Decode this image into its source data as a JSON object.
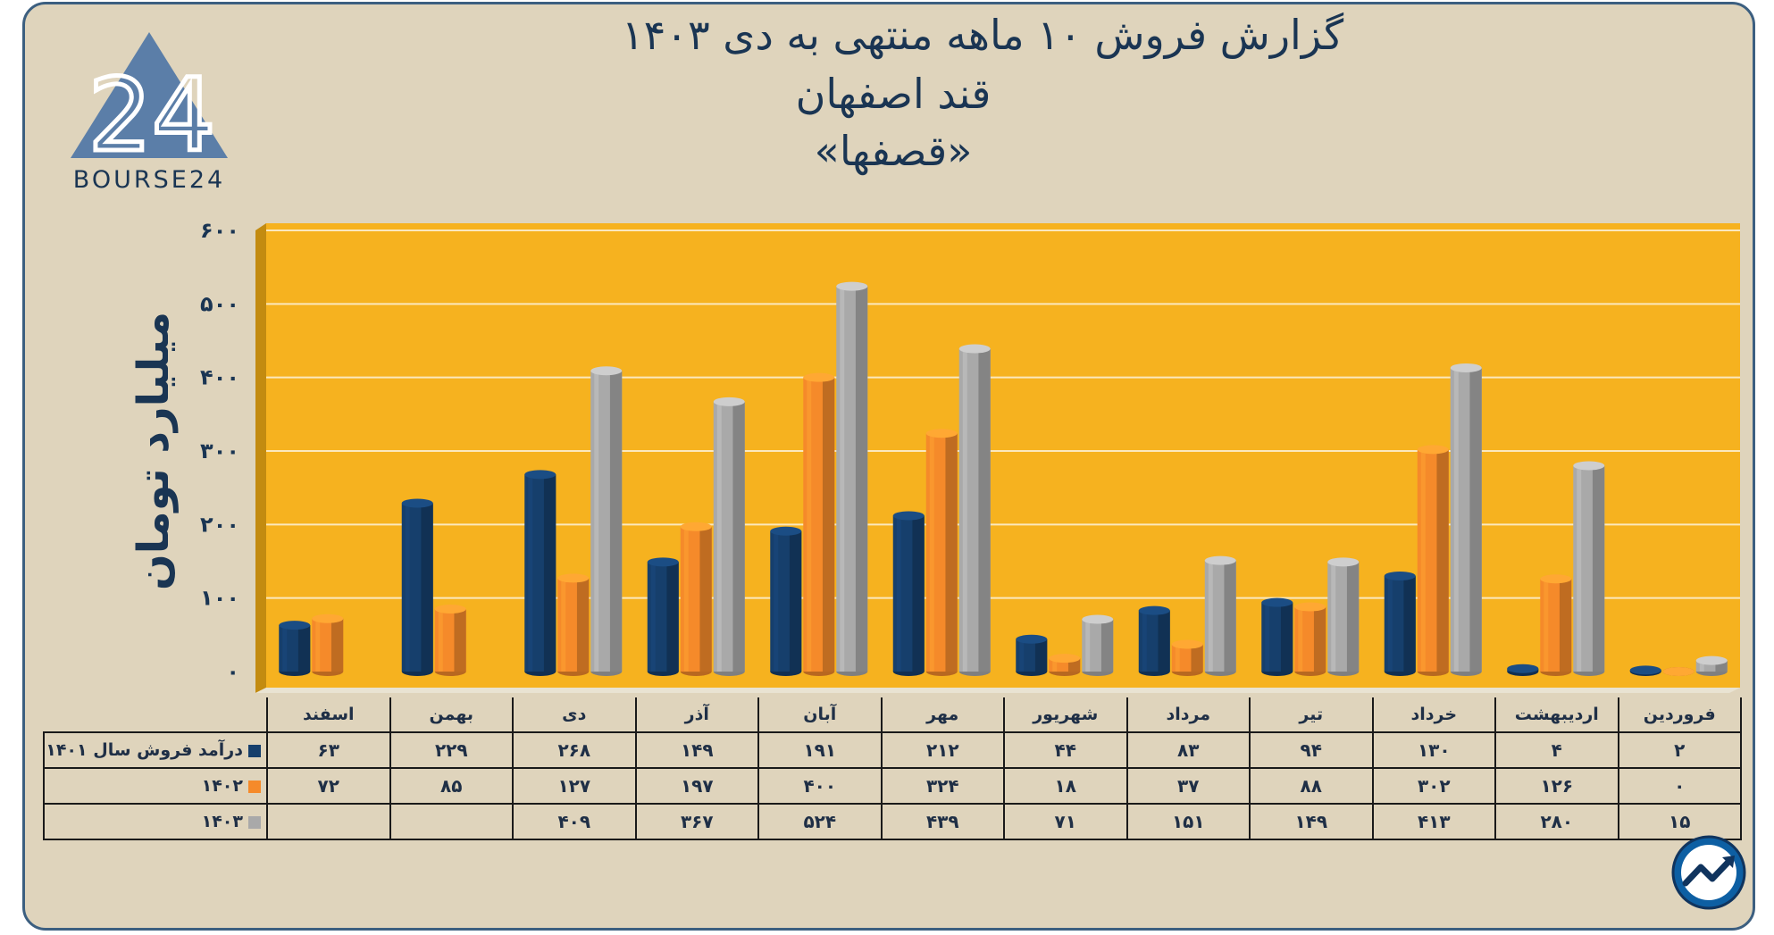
{
  "header": {
    "title_line1": "گزارش  فروش ۱۰ ماهه منتهی به دی ۱۴۰۳",
    "title_line2": "قند اصفهان",
    "title_line3": "«قصفها»"
  },
  "logo": {
    "brand": "BOURSE24",
    "mark": "24",
    "icon": "triangle-logo"
  },
  "badge": {
    "icon": "trend-arrow-icon"
  },
  "colors": {
    "panel_bg": "#dfd4bc",
    "plot_bg": "#f6b21f",
    "title": "#1a3553",
    "series": [
      "#163f6c",
      "#f58a2a",
      "#a9a9a9"
    ]
  },
  "chart_data": {
    "type": "bar",
    "title": "گزارش  فروش ۱۰ ماهه منتهی به دی ۱۴۰۳",
    "subtitle": "قند اصفهان «قصفها»",
    "ylabel": "میلیارد تومان",
    "xlabel": "",
    "ylim": [
      0,
      600
    ],
    "yticks": [
      0,
      100,
      200,
      300,
      400,
      500,
      600
    ],
    "ytick_labels": [
      "۰",
      "۱۰۰",
      "۲۰۰",
      "۳۰۰",
      "۴۰۰",
      "۵۰۰",
      "۶۰۰"
    ],
    "grid": true,
    "legend": "table-below",
    "categories": [
      "اسفند",
      "بهمن",
      "دی",
      "آذر",
      "آبان",
      "مهر",
      "شهریور",
      "مرداد",
      "تیر",
      "خرداد",
      "اردیبهشت",
      "فروردین"
    ],
    "series": [
      {
        "name": "درآمد فروش سال ۱۴۰۱",
        "values": [
          63,
          229,
          268,
          149,
          191,
          212,
          44,
          83,
          94,
          130,
          4,
          2
        ],
        "labels": [
          "۶۳",
          "۲۲۹",
          "۲۶۸",
          "۱۴۹",
          "۱۹۱",
          "۲۱۲",
          "۴۴",
          "۸۳",
          "۹۴",
          "۱۳۰",
          "۴",
          "۲"
        ]
      },
      {
        "name": "۱۴۰۲",
        "values": [
          72,
          85,
          127,
          197,
          400,
          324,
          18,
          37,
          88,
          302,
          126,
          0
        ],
        "labels": [
          "۷۲",
          "۸۵",
          "۱۲۷",
          "۱۹۷",
          "۴۰۰",
          "۳۲۴",
          "۱۸",
          "۳۷",
          "۸۸",
          "۳۰۲",
          "۱۲۶",
          "۰"
        ]
      },
      {
        "name": "۱۴۰۳",
        "values": [
          null,
          null,
          409,
          367,
          524,
          439,
          71,
          151,
          149,
          413,
          280,
          15
        ],
        "labels": [
          "",
          "",
          "۴۰۹",
          "۳۶۷",
          "۵۲۴",
          "۴۳۹",
          "۷۱",
          "۱۵۱",
          "۱۴۹",
          "۴۱۳",
          "۲۸۰",
          "۱۵"
        ]
      }
    ]
  }
}
